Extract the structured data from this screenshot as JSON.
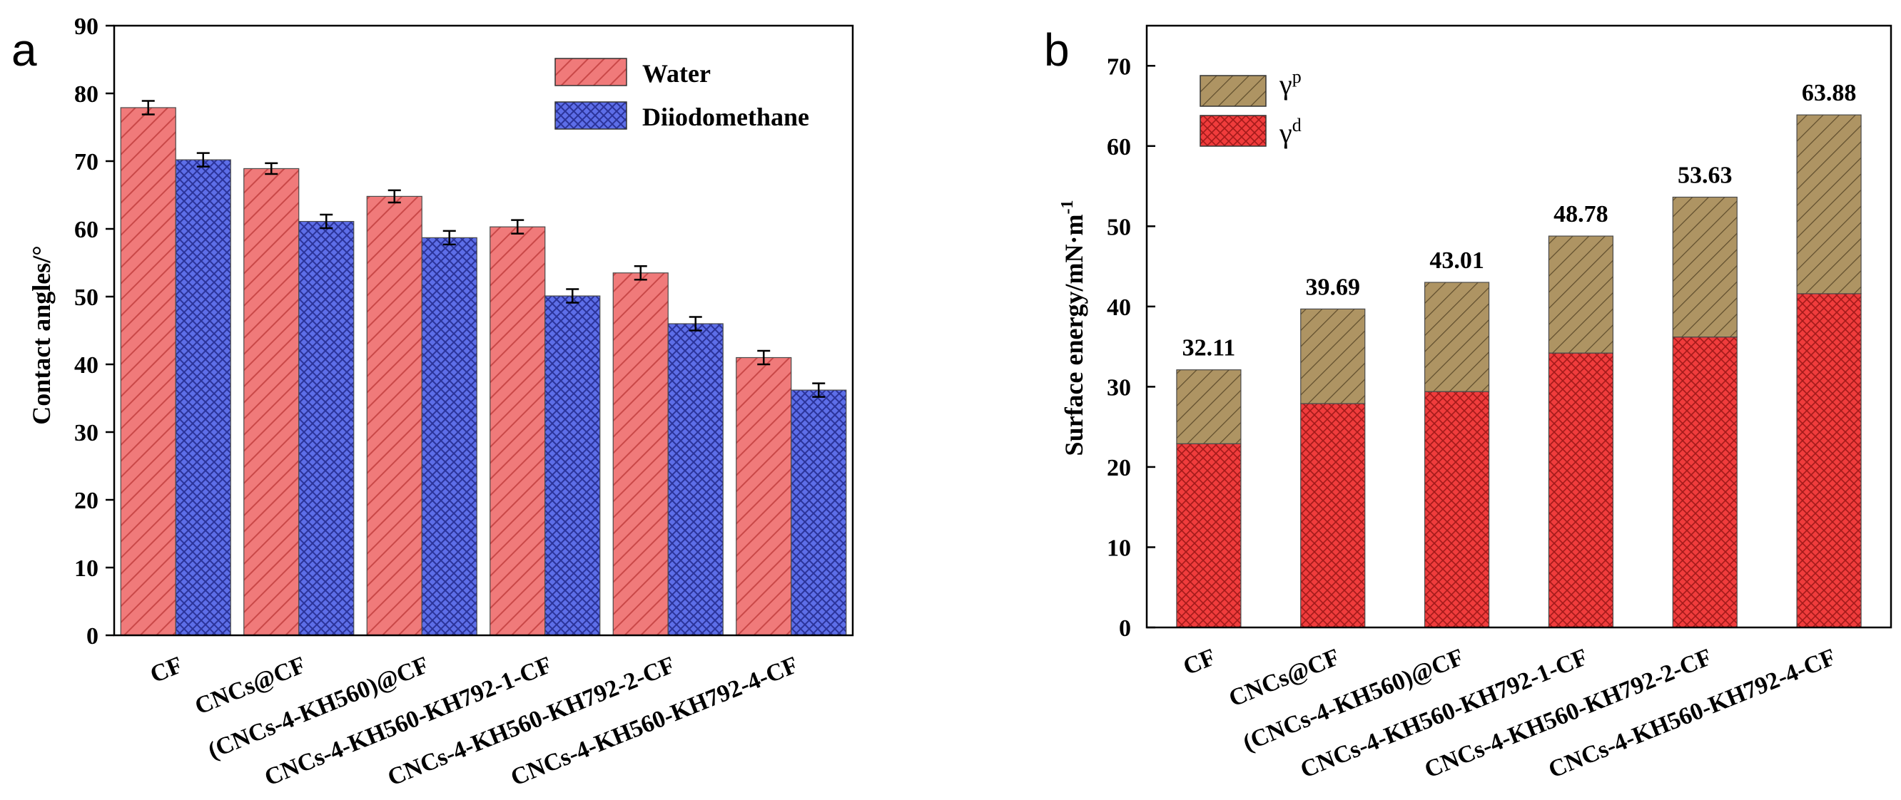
{
  "chart_data": [
    {
      "panel_label": "a",
      "type": "bar",
      "title": "",
      "xlabel": "",
      "ylabel": "Contact angles/°",
      "ylim": [
        0,
        90
      ],
      "yticks": [
        "0",
        "10",
        "20",
        "30",
        "40",
        "50",
        "60",
        "70",
        "80",
        "90"
      ],
      "categories": [
        "CF",
        "CNCs@CF",
        "(CNCs-4-KH560)@CF",
        "CNCs-4-KH560-KH792-1-CF",
        "CNCs-4-KH560-KH792-2-CF",
        "CNCs-4-KH560-KH792-4-CF"
      ],
      "series": [
        {
          "name": "Water",
          "values": [
            77.9,
            68.9,
            64.8,
            60.3,
            53.5,
            41.0
          ],
          "errors": [
            1.0,
            0.8,
            0.9,
            1.0,
            1.0,
            1.0
          ],
          "color": "#f07a7a",
          "hatch_color": "#c03a3a"
        },
        {
          "name": "Diiodomethane",
          "values": [
            70.2,
            61.1,
            58.7,
            50.1,
            46.0,
            36.2
          ],
          "errors": [
            1.0,
            1.0,
            1.0,
            1.0,
            1.0,
            1.0
          ],
          "color": "#5a6be6",
          "hatch_color": "#2a3296"
        }
      ],
      "legend": {
        "position": "top-right",
        "entries": [
          "Water",
          "Diiodomethane"
        ]
      }
    },
    {
      "panel_label": "b",
      "type": "bar",
      "stacked": true,
      "title": "",
      "xlabel": "",
      "ylabel": "Surface energy/mN·m",
      "ylabel_superscript": "-1",
      "ylim": [
        0,
        75
      ],
      "yticks": [
        "0",
        "10",
        "20",
        "30",
        "40",
        "50",
        "60",
        "70"
      ],
      "categories": [
        "CF",
        "CNCs@CF",
        "(CNCs-4-KH560)@CF",
        "CNCs-4-KH560-KH792-1-CF",
        "CNCs-4-KH560-KH792-2-CF",
        "CNCs-4-KH560-KH792-4-CF"
      ],
      "series": [
        {
          "name": "γd",
          "symbol": "γ",
          "superscript": "d",
          "values": [
            22.9,
            27.9,
            29.4,
            34.2,
            36.2,
            41.6
          ],
          "color": "#f03a3a",
          "hatch_color": "#a01818"
        },
        {
          "name": "γp",
          "symbol": "γ",
          "superscript": "p",
          "values": [
            9.21,
            11.79,
            13.61,
            14.58,
            17.43,
            22.28
          ],
          "color": "#ad9261",
          "hatch_color": "#5c4a2a"
        }
      ],
      "totals": [
        32.11,
        39.69,
        43.01,
        48.78,
        53.63,
        63.88
      ],
      "total_labels": [
        "32.11",
        "39.69",
        "43.01",
        "48.78",
        "53.63",
        "63.88"
      ],
      "legend": {
        "position": "top-left",
        "entries": [
          "γp",
          "γd"
        ]
      }
    }
  ]
}
